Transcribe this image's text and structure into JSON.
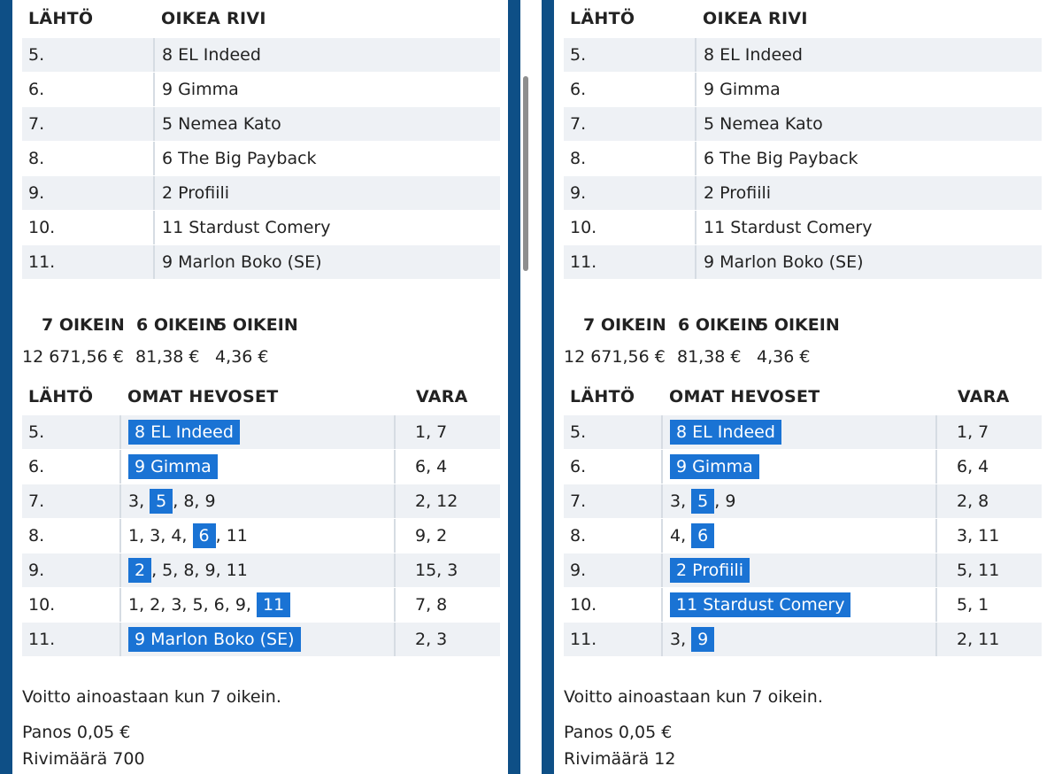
{
  "left": {
    "correct_header": {
      "col1": "LÄHTÖ",
      "col2": "OIKEA RIVI"
    },
    "correct_rows": [
      {
        "race": "5.",
        "horse": "8 EL Indeed"
      },
      {
        "race": "6.",
        "horse": "9 Gimma"
      },
      {
        "race": "7.",
        "horse": "5 Nemea Kato"
      },
      {
        "race": "8.",
        "horse": "6 The Big Payback"
      },
      {
        "race": "9.",
        "horse": "2 Profiili"
      },
      {
        "race": "10.",
        "horse": "11 Stardust Comery"
      },
      {
        "race": "11.",
        "horse": "9 Marlon Boko (SE)"
      }
    ],
    "payout_labels": [
      "7 OIKEIN",
      "6 OIKEIN",
      "5 OIKEIN"
    ],
    "payout_values": [
      "12 671,56 €",
      "81,38 €",
      "4,36 €"
    ],
    "own_header": {
      "col1": "LÄHTÖ",
      "col2": "OMAT HEVOSET",
      "col3": "VARA"
    },
    "own_rows": [
      {
        "race": "5.",
        "pre": "",
        "hl": "8 EL Indeed",
        "post": "",
        "reserve": "1, 7"
      },
      {
        "race": "6.",
        "pre": "",
        "hl": "9 Gimma",
        "post": "",
        "reserve": "6, 4"
      },
      {
        "race": "7.",
        "pre": "3, ",
        "hl": "5",
        "post": ", 8, 9",
        "reserve": "2, 12"
      },
      {
        "race": "8.",
        "pre": "1, 3, 4, ",
        "hl": "6",
        "post": ", 11",
        "reserve": "9, 2"
      },
      {
        "race": "9.",
        "pre": "",
        "hl": "2",
        "post": ", 5, 8, 9, 11",
        "reserve": "15, 3"
      },
      {
        "race": "10.",
        "pre": "1, 2, 3, 5, 6, 9, ",
        "hl": "11",
        "post": "",
        "reserve": "7, 8"
      },
      {
        "race": "11.",
        "pre": "",
        "hl": "9 Marlon Boko (SE)",
        "post": "",
        "reserve": "2, 3"
      }
    ],
    "win_note": "Voitto ainoastaan kun 7 oikein.",
    "stake": "Panos 0,05 €",
    "row_count": "Rivimäärä 700"
  },
  "right": {
    "correct_header": {
      "col1": "LÄHTÖ",
      "col2": "OIKEA RIVI"
    },
    "correct_rows": [
      {
        "race": "5.",
        "horse": "8 EL Indeed"
      },
      {
        "race": "6.",
        "horse": "9 Gimma"
      },
      {
        "race": "7.",
        "horse": "5 Nemea Kato"
      },
      {
        "race": "8.",
        "horse": "6 The Big Payback"
      },
      {
        "race": "9.",
        "horse": "2 Profiili"
      },
      {
        "race": "10.",
        "horse": "11 Stardust Comery"
      },
      {
        "race": "11.",
        "horse": "9 Marlon Boko (SE)"
      }
    ],
    "payout_labels": [
      "7 OIKEIN",
      "6 OIKEIN",
      "5 OIKEIN"
    ],
    "payout_values": [
      "12 671,56 €",
      "81,38 €",
      "4,36 €"
    ],
    "own_header": {
      "col1": "LÄHTÖ",
      "col2": "OMAT HEVOSET",
      "col3": "VARA"
    },
    "own_rows": [
      {
        "race": "5.",
        "pre": "",
        "hl": "8 EL Indeed",
        "post": "",
        "reserve": "1, 7"
      },
      {
        "race": "6.",
        "pre": "",
        "hl": "9 Gimma",
        "post": "",
        "reserve": "6, 4"
      },
      {
        "race": "7.",
        "pre": "3, ",
        "hl": "5",
        "post": ", 9",
        "reserve": "2, 8"
      },
      {
        "race": "8.",
        "pre": "4, ",
        "hl": "6",
        "post": "",
        "reserve": "3, 11"
      },
      {
        "race": "9.",
        "pre": "",
        "hl": "2 Profiili",
        "post": "",
        "reserve": "5, 11"
      },
      {
        "race": "10.",
        "pre": "",
        "hl": "11 Stardust Comery",
        "post": "",
        "reserve": "5, 1"
      },
      {
        "race": "11.",
        "pre": "3, ",
        "hl": "9",
        "post": "",
        "reserve": "2, 11"
      }
    ],
    "win_note": "Voitto ainoastaan kun 7 oikein.",
    "stake": "Panos 0,05 €",
    "row_count": "Rivimäärä 12"
  },
  "colors": {
    "highlight": "#1a73d4",
    "frame": "#0e4f86",
    "row_alt": "#eef1f5"
  }
}
